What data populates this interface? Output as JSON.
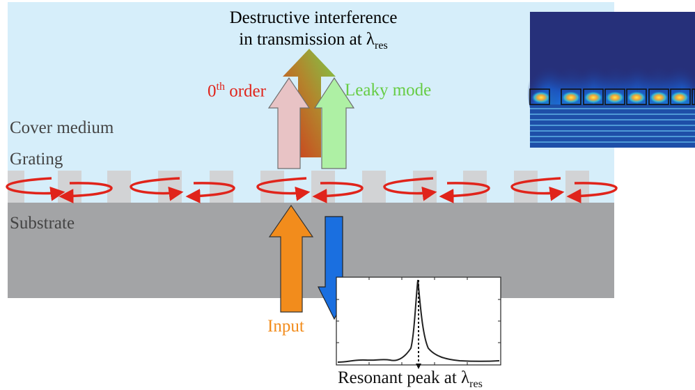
{
  "title": {
    "line1": "Destructive interference",
    "line2_prefix": "in transmission at λ",
    "line2_sub": "res"
  },
  "labels": {
    "zeroth_order_prefix": "0",
    "zeroth_order_sup": "th",
    "zeroth_order_suffix": " order",
    "leaky_mode": "Leaky mode",
    "cover_medium": "Cover medium",
    "grating": "Grating",
    "substrate": "Substrate",
    "input": "Input",
    "resonant_prefix": "Resonant peak at λ",
    "resonant_sub": "res"
  },
  "colors": {
    "cover": "#d6eefa",
    "substrate": "#a3a4a6",
    "grating_tooth": "#d2d3d5",
    "arrow_red": "#e0241b",
    "zeroth_order_text": "#e0241b",
    "leaky_text": "#66cc44",
    "input_text": "#f28c1c",
    "input_arrow": "#f28c1c",
    "reflect_arrow": "#1a6fe0",
    "pink_arrow": "#e8c3c5",
    "green_arrow": "#aef0a4"
  },
  "icons": {
    "circulation": "red-circulating-arrow-icon",
    "field_map": "field-distribution-thumbnail",
    "spectrum": "resonance-spectrum-plot"
  }
}
